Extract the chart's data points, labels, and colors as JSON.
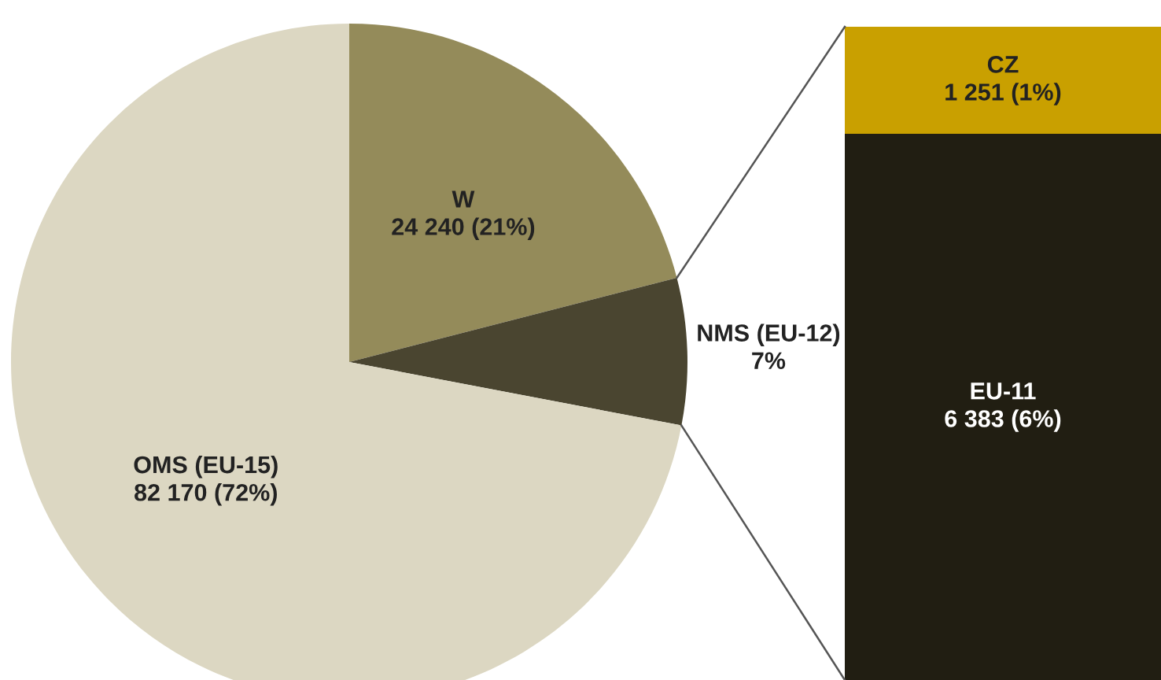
{
  "chart_data": [
    {
      "type": "pie",
      "categories": [
        "W",
        "NMS (EU-12)",
        "OMS (EU-15)"
      ],
      "values": [
        21,
        7,
        72
      ],
      "value_labels": [
        "24 240 (21%)",
        "7%",
        "82 170 (72%)"
      ],
      "colors": [
        "#948b5a",
        "#4a4530",
        "#dcd7c2"
      ]
    },
    {
      "type": "bar",
      "stacked": true,
      "tick_labels": false,
      "categories": [
        null
      ],
      "series": [
        {
          "name": "EU-11",
          "color": "#211e12",
          "values": [
            6383
          ],
          "value_labels": [
            "6 383 (6%)"
          ]
        },
        {
          "name": "CZ",
          "color": "#c9a000",
          "values": [
            1251
          ],
          "value_labels": [
            "1 251 (1%)"
          ]
        }
      ]
    }
  ]
}
